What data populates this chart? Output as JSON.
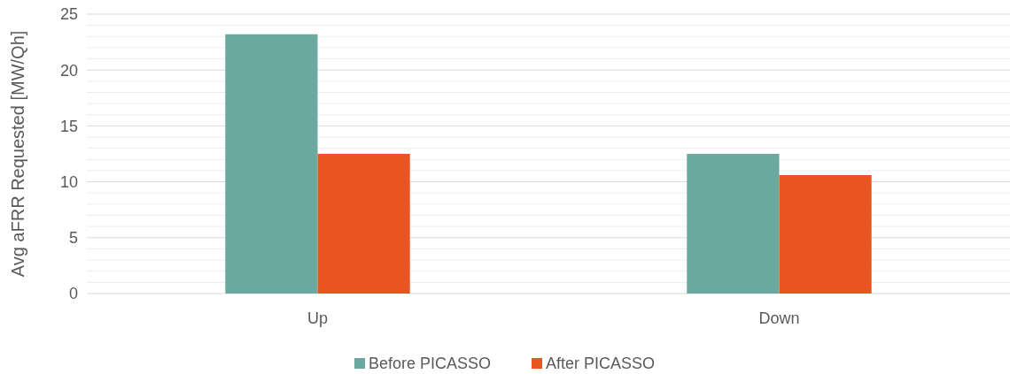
{
  "chart_data": {
    "type": "bar",
    "ylabel": "Avg aFRR Requested [MW/Qh]",
    "categories": [
      "Up",
      "Down"
    ],
    "series": [
      {
        "name": "Before PICASSO",
        "color": "#6aa9a0",
        "values": [
          23.2,
          12.5
        ]
      },
      {
        "name": "After PICASSO",
        "color": "#e85523",
        "values": [
          12.5,
          10.6
        ]
      }
    ],
    "ylim": [
      0,
      25
    ],
    "yticks": [
      0,
      5,
      10,
      15,
      20,
      25
    ],
    "grid": true,
    "legend": "bottom"
  }
}
